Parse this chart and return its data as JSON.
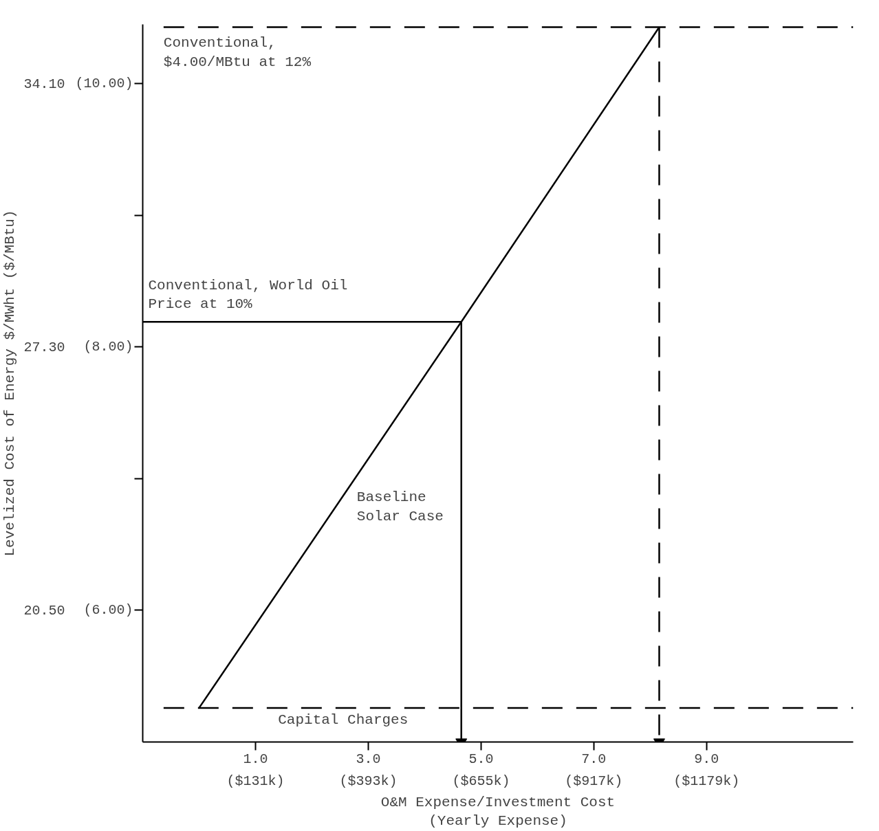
{
  "chart_data": {
    "type": "line",
    "xlabel": "O&M Expense/Investment Cost\n(Yearly Expense)",
    "ylabel": "Levelized Cost of Energy $/MWht ($/MBtu)",
    "xlim": [
      -1,
      11.6
    ],
    "ylim": [
      17.1,
      35.63
    ],
    "y2lim": [
      5,
      10.45
    ],
    "x2lim": [
      -131,
      1519.6
    ],
    "xticks": [
      {
        "value": 1,
        "label": "1.0"
      },
      {
        "value": 3,
        "label": "3.0"
      },
      {
        "value": 5,
        "label": "5.0"
      },
      {
        "value": 7,
        "label": "7.0"
      },
      {
        "value": 9,
        "label": "9.0"
      }
    ],
    "x2ticks": [
      {
        "value": 131,
        "label": "($131k)"
      },
      {
        "value": 393,
        "label": "($393k)"
      },
      {
        "value": 655,
        "label": "($655k)"
      },
      {
        "value": 917,
        "label": "($917k)"
      },
      {
        "value": 1179,
        "label": "($1179k)"
      }
    ],
    "yticks": [
      {
        "value": 20.5,
        "label": "20.50"
      },
      {
        "value": 27.3,
        "label": "27.30"
      },
      {
        "value": 34.1,
        "label": "34.10"
      }
    ],
    "y2ticks": [
      {
        "value": 6,
        "label": "(6.00)"
      },
      {
        "value": 7,
        "label": null
      },
      {
        "value": 8,
        "label": "(8.00)"
      },
      {
        "value": 9,
        "label": null
      },
      {
        "value": 10,
        "label": "(10.00)"
      }
    ],
    "grid": false,
    "line_style": "solid",
    "series": [
      {
        "color": "#000000",
        "x": [
          0,
          4.65,
          8.16
        ],
        "values": [
          17.98,
          27.95,
          35.56
        ]
      },
      {
        "color": "#000000",
        "x": [
          -1,
          4.65
        ],
        "values": [
          27.95,
          27.95
        ]
      },
      {
        "color": "#000000",
        "x": [
          4.65,
          4.65
        ],
        "values": [
          27.95,
          17.1
        ]
      },
      {
        "color": "#000000",
        "line_style": "dashed",
        "x": [
          8.16,
          8.16
        ],
        "values": [
          35.56,
          17.1
        ]
      },
      {
        "color": "#000000",
        "line_style": "dashed",
        "x": [
          -0.63,
          11.6
        ],
        "values": [
          35.56,
          35.56
        ]
      },
      {
        "color": "#000000",
        "line_style": "dashed",
        "x": [
          -0.63,
          11.6
        ],
        "values": [
          17.98,
          17.98
        ]
      }
    ],
    "annotations": [
      {
        "text": "Conventional,\n$4.00/MBtu at 12%",
        "x": -0.63,
        "y": 35.56
      },
      {
        "text": "Conventional, World Oil\nPrice at 10%",
        "x": -1,
        "y": 27.95
      },
      {
        "text": "Baseline\nSolar Case",
        "x": 2.7,
        "y": 23.8
      },
      {
        "text": "Capital Charges",
        "x": 1.4,
        "y": 17.98
      }
    ]
  }
}
